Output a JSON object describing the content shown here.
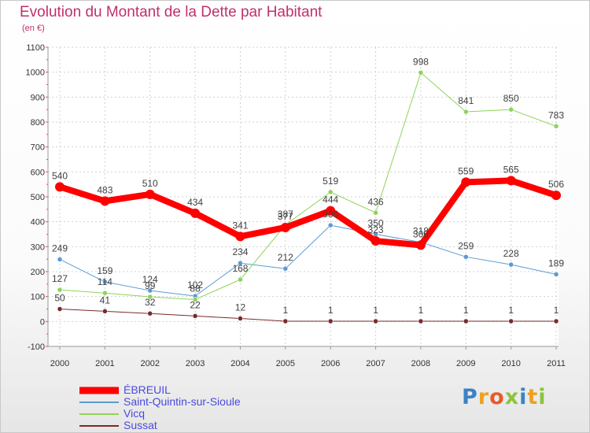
{
  "title": "Evolution du Montant de la Dette par Habitant",
  "subtitle": "(en €)",
  "chart_data": {
    "type": "line",
    "title": "Evolution du Montant de la Dette par Habitant",
    "subtitle": "(en €)",
    "x": [
      "2000",
      "2001",
      "2002",
      "2003",
      "2004",
      "2005",
      "2006",
      "2007",
      "2008",
      "2009",
      "2010",
      "2011"
    ],
    "ylim": [
      -100,
      1100
    ],
    "yticks": [
      -100,
      0,
      100,
      200,
      300,
      400,
      500,
      600,
      700,
      800,
      900,
      1000,
      1100
    ],
    "grid": true,
    "legend_position": "bottom-left",
    "series": [
      {
        "name": "ÉBREUIL",
        "color": "#ff0000",
        "values": [
          540,
          483,
          510,
          434,
          341,
          377,
          444,
          323,
          306,
          559,
          565,
          506
        ]
      },
      {
        "name": "Saint-Quintin-sur-Sioule",
        "color": "#5b9bd5",
        "values": [
          249,
          159,
          124,
          102,
          234,
          212,
          386,
          350,
          318,
          259,
          228,
          189
        ]
      },
      {
        "name": "Vicq",
        "color": "#8ed45a",
        "values": [
          127,
          114,
          99,
          88,
          168,
          387,
          519,
          436,
          998,
          841,
          850,
          783
        ]
      },
      {
        "name": "Sussat",
        "color": "#7a2a2a",
        "values": [
          50,
          41,
          32,
          22,
          12,
          1,
          1,
          1,
          1,
          1,
          1,
          1
        ]
      }
    ]
  },
  "logo": {
    "text": "Proxiti",
    "letters": [
      "P",
      "r",
      "o",
      "x",
      "i",
      "t",
      "i"
    ],
    "colors": [
      "#3d82c4",
      "#f0a020",
      "#e85a2a",
      "#8cc43c",
      "#3d82c4",
      "#f0a020",
      "#8cc43c"
    ]
  }
}
